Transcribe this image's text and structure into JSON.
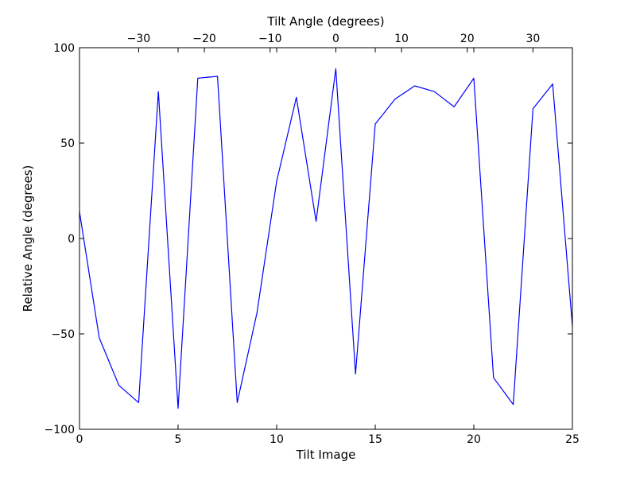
{
  "chart_data": {
    "type": "line",
    "xlabel": "Tilt Image",
    "ylabel": "Relative Angle (degrees)",
    "x2label": "Tilt Angle (degrees)",
    "xlim": [
      0,
      25
    ],
    "ylim": [
      -100,
      100
    ],
    "x2lim": [
      -39,
      36
    ],
    "x_ticks": [
      0,
      5,
      10,
      15,
      20,
      25
    ],
    "y_ticks": [
      -100,
      -50,
      0,
      50,
      100
    ],
    "x2_ticks": [
      -30,
      -20,
      -10,
      0,
      10,
      20,
      30
    ],
    "x_tick_labels": [
      "0",
      "5",
      "10",
      "15",
      "20",
      "25"
    ],
    "y_tick_labels": [
      "−100",
      "−50",
      "0",
      "50",
      "100"
    ],
    "x2_tick_labels": [
      "−30",
      "−20",
      "−10",
      "0",
      "10",
      "20",
      "30"
    ],
    "grid": false,
    "line_color": "#0000ff",
    "series": [
      {
        "x": [
          0,
          1,
          2,
          3,
          4,
          5,
          6,
          7,
          8,
          9,
          10,
          11,
          12,
          13,
          14,
          15,
          16,
          17,
          18,
          19,
          20,
          21,
          22,
          23,
          24,
          25
        ],
        "values": [
          14,
          -52,
          -77,
          -86,
          77,
          -89,
          84,
          85,
          -86,
          -39,
          30,
          74,
          9,
          89,
          -71,
          60,
          73,
          80,
          77,
          69,
          84,
          -73,
          -87,
          68,
          81,
          -46
        ]
      }
    ]
  }
}
